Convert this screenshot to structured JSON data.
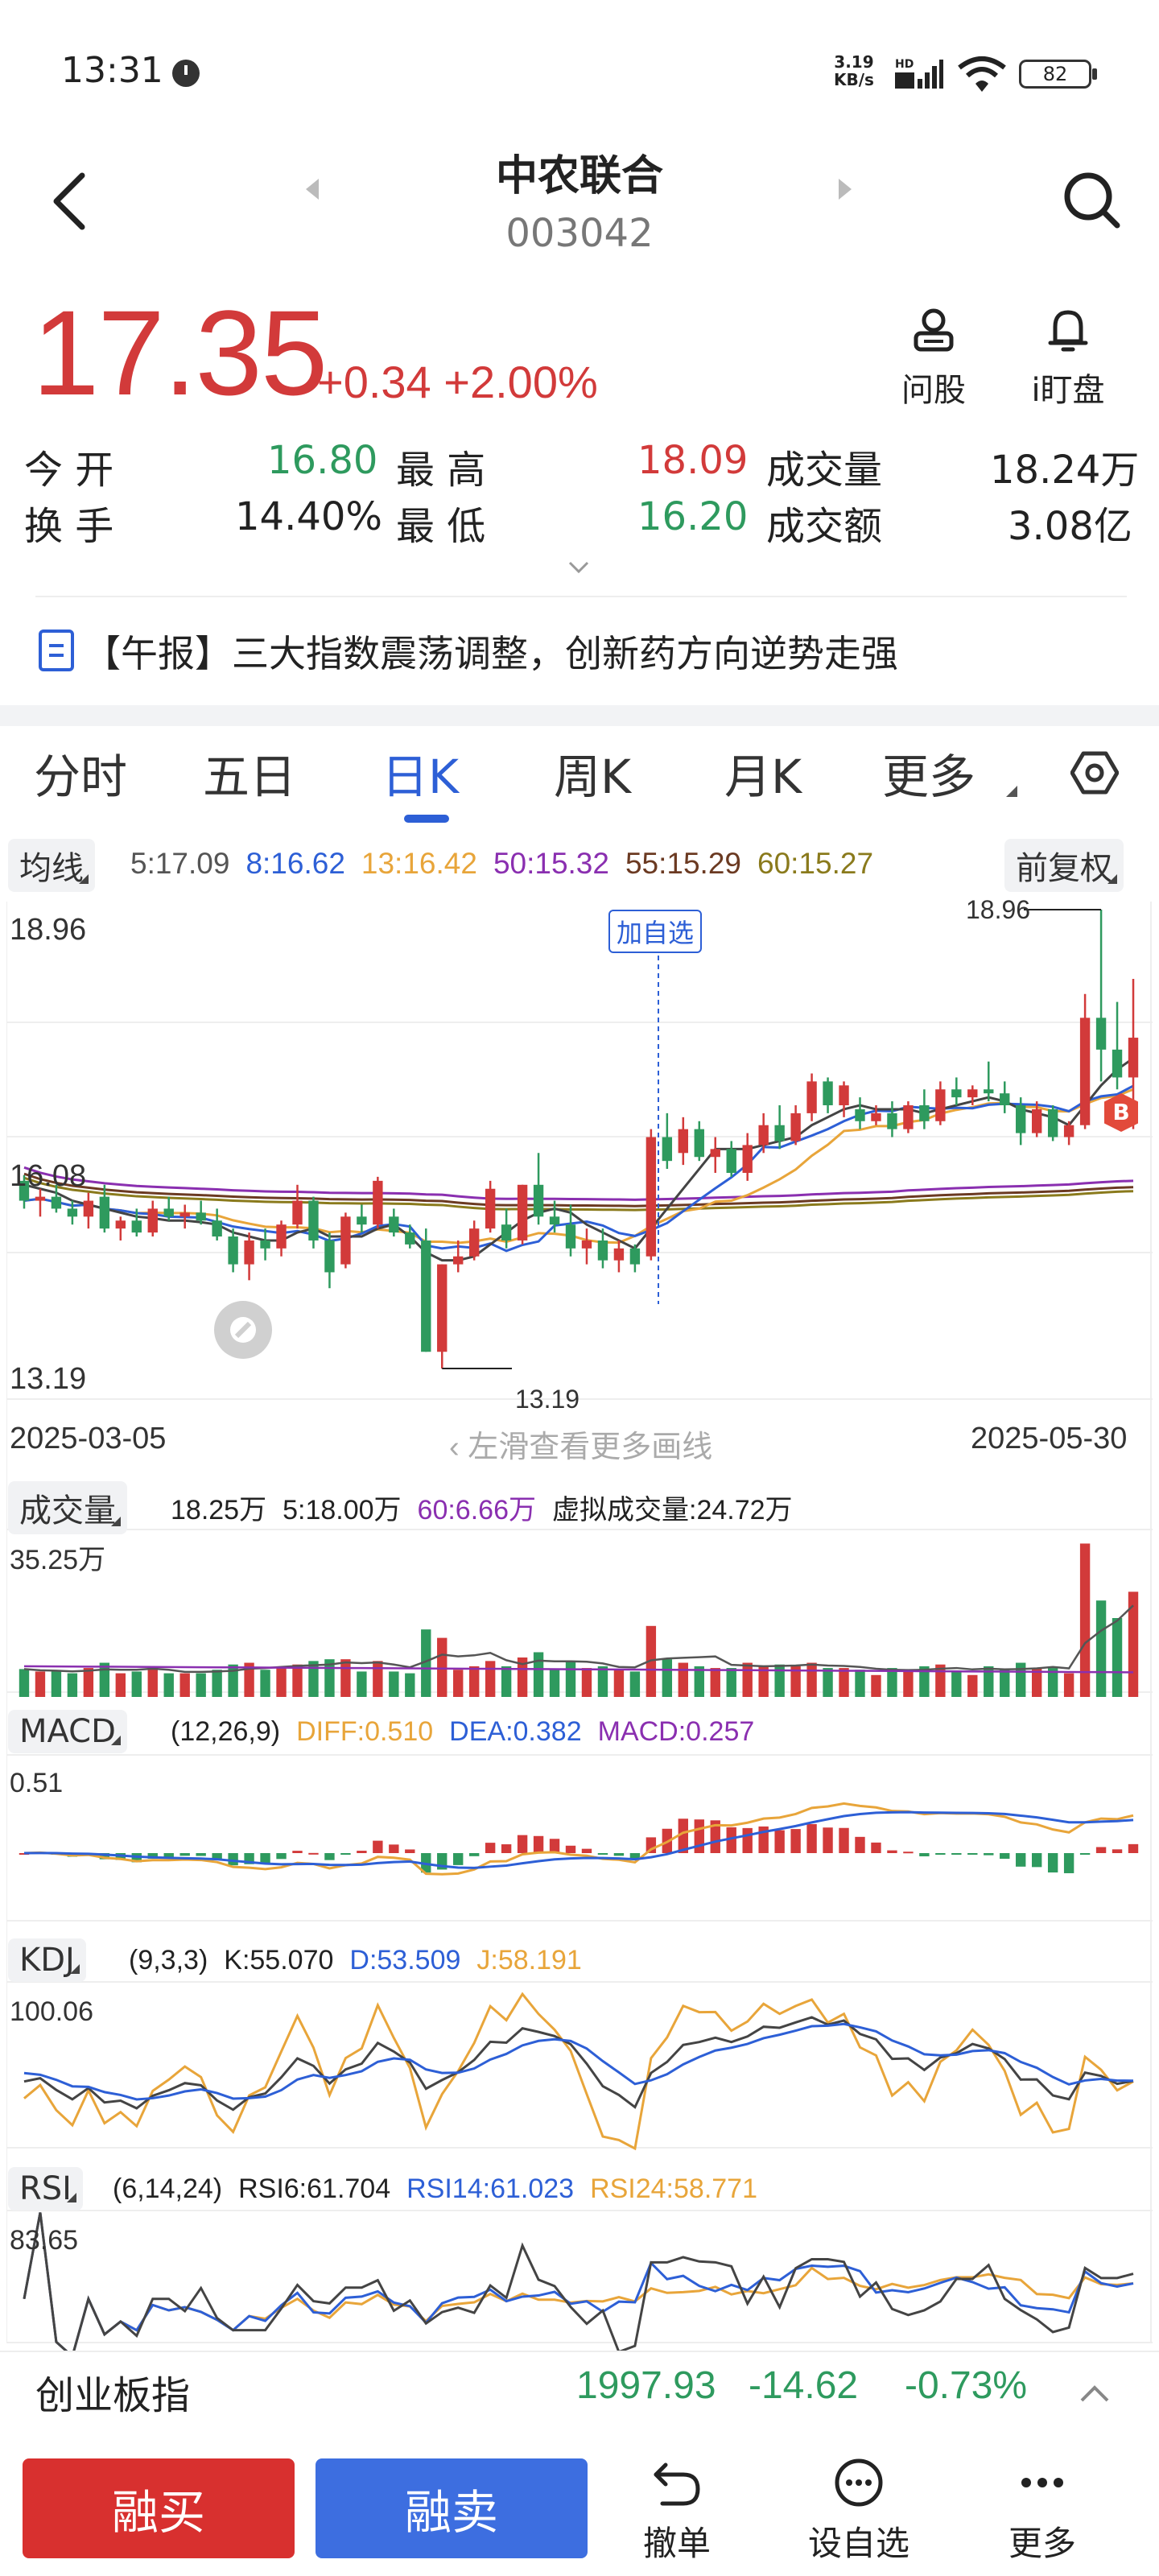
{
  "status_bar": {
    "time": "13:31",
    "net_speed_value": "3.19",
    "net_speed_unit": "KB/s",
    "net_type": "HD",
    "battery": "82"
  },
  "header": {
    "stock_name": "中农联合",
    "stock_code": "003042"
  },
  "quote": {
    "price": "17.35",
    "change": "+0.34",
    "change_pct": "+2.00%",
    "ask_label": "问股",
    "watch_label": "i盯盘"
  },
  "stats": {
    "open_label": "今  开",
    "open_value": "16.80",
    "high_label": "最  高",
    "high_value": "18.09",
    "volume_label": "成交量",
    "volume_value": "18.24万",
    "turnover_label": "换  手",
    "turnover_value": "14.40%",
    "low_label": "最  低",
    "low_value": "16.20",
    "amount_label": "成交额",
    "amount_value": "3.08亿"
  },
  "news": {
    "text": "【午报】三大指数震荡调整，创新药方向逆势走强"
  },
  "tabs": [
    "分时",
    "五日",
    "日K",
    "周K",
    "月K",
    "更多"
  ],
  "active_tab": 2,
  "ma_legend": {
    "selector": "均线",
    "ma5": "5:17.09",
    "ma8": "8:16.62",
    "ma13": "13:16.42",
    "ma50": "50:15.32",
    "ma55": "55:15.29",
    "ma60": "60:15.27",
    "adjust": "前复权"
  },
  "kline": {
    "high_label": "18.96",
    "mid_label": "16.08",
    "low_label": "13.19",
    "max_marker": "18.96",
    "min_marker": "13.19",
    "add_watch_tag": "加自选",
    "buy_tag": "B",
    "start_date": "2025-03-05",
    "end_date": "2025-05-30",
    "scroll_hint": "左滑查看更多画线"
  },
  "volume": {
    "selector": "成交量",
    "today": "18.25万",
    "ma5": "5:18.00万",
    "ma60": "60:6.66万",
    "virtual": "虚拟成交量:24.72万",
    "max_label": "35.25万"
  },
  "macd": {
    "selector": "MACD",
    "params": "(12,26,9)",
    "diff": "DIFF:0.510",
    "dea": "DEA:0.382",
    "macd": "MACD:0.257",
    "max_label": "0.51"
  },
  "kdj": {
    "selector": "KDJ",
    "params": "(9,3,3)",
    "k": "K:55.070",
    "d": "D:53.509",
    "j": "J:58.191",
    "max_label": "100.06"
  },
  "rsi": {
    "selector": "RSI",
    "params": "(6,14,24)",
    "rsi6": "RSI6:61.704",
    "rsi14": "RSI14:61.023",
    "rsi24": "RSI24:58.771",
    "max_label": "83.65"
  },
  "index_bar": {
    "name": "创业板指",
    "value": "1997.93",
    "change": "-14.62",
    "change_pct": "-0.73%"
  },
  "bottom_bar": {
    "buy": "融买",
    "sell": "融卖",
    "cancel": "撤单",
    "set_watch": "设自选",
    "more": "更多"
  },
  "colors": {
    "up": "#d23a3a",
    "down": "#2e9a5e",
    "accent": "#2d5fd6",
    "ma5": "#444444",
    "ma8": "#2d5fd6",
    "ma13": "#e8a53a",
    "ma50": "#8a2fb0",
    "ma55": "#6b3a22",
    "ma60": "#8a7a1c"
  },
  "chart_data": {
    "type": "candlestick",
    "x_start": "2025-03-05",
    "x_end": "2025-05-30",
    "y_range": [
      13.19,
      18.96
    ],
    "ohlc": [
      [
        15.55,
        15.62,
        15.2,
        15.3
      ],
      [
        15.3,
        15.45,
        15.1,
        15.35
      ],
      [
        15.35,
        15.5,
        15.15,
        15.2
      ],
      [
        15.2,
        15.3,
        15.0,
        15.1
      ],
      [
        15.1,
        15.4,
        14.95,
        15.3
      ],
      [
        15.35,
        15.5,
        14.9,
        14.95
      ],
      [
        14.95,
        15.1,
        14.8,
        15.05
      ],
      [
        15.05,
        15.2,
        14.85,
        14.9
      ],
      [
        14.9,
        15.3,
        14.85,
        15.2
      ],
      [
        15.2,
        15.35,
        15.05,
        15.1
      ],
      [
        15.1,
        15.25,
        14.95,
        15.15
      ],
      [
        15.15,
        15.3,
        15.0,
        15.05
      ],
      [
        15.05,
        15.2,
        14.8,
        14.85
      ],
      [
        14.85,
        14.95,
        14.4,
        14.5
      ],
      [
        14.5,
        14.9,
        14.3,
        14.8
      ],
      [
        14.8,
        14.95,
        14.55,
        14.7
      ],
      [
        14.7,
        15.05,
        14.6,
        15.0
      ],
      [
        15.0,
        15.5,
        14.95,
        15.3
      ],
      [
        15.3,
        15.35,
        14.7,
        14.8
      ],
      [
        14.8,
        14.9,
        14.2,
        14.4
      ],
      [
        14.5,
        15.15,
        14.45,
        15.1
      ],
      [
        15.1,
        15.25,
        14.9,
        15.0
      ],
      [
        15.0,
        15.6,
        14.95,
        15.55
      ],
      [
        15.1,
        15.2,
        14.85,
        14.9
      ],
      [
        14.9,
        15.0,
        14.7,
        14.75
      ],
      [
        14.8,
        14.95,
        13.4,
        13.4
      ],
      [
        13.4,
        14.5,
        13.19,
        14.5
      ],
      [
        14.5,
        14.8,
        14.4,
        14.6
      ],
      [
        14.6,
        15.05,
        14.55,
        14.95
      ],
      [
        14.95,
        15.55,
        14.9,
        15.45
      ],
      [
        15.0,
        15.2,
        14.7,
        14.8
      ],
      [
        14.8,
        15.5,
        14.75,
        15.5
      ],
      [
        15.5,
        15.9,
        15.0,
        15.1
      ],
      [
        15.1,
        15.3,
        14.9,
        15.0
      ],
      [
        15.0,
        15.25,
        14.6,
        14.7
      ],
      [
        14.7,
        14.95,
        14.5,
        14.8
      ],
      [
        14.8,
        14.95,
        14.45,
        14.55
      ],
      [
        14.55,
        14.8,
        14.4,
        14.7
      ],
      [
        14.7,
        14.75,
        14.4,
        14.5
      ],
      [
        14.6,
        16.2,
        14.55,
        16.1
      ],
      [
        16.1,
        16.4,
        15.7,
        15.8
      ],
      [
        15.9,
        16.35,
        15.75,
        16.2
      ],
      [
        16.2,
        16.3,
        15.8,
        15.85
      ],
      [
        15.85,
        16.1,
        15.65,
        15.95
      ],
      [
        15.95,
        16.05,
        15.6,
        15.65
      ],
      [
        15.65,
        16.15,
        15.55,
        16.0
      ],
      [
        16.0,
        16.4,
        15.9,
        16.25
      ],
      [
        16.25,
        16.5,
        15.95,
        16.05
      ],
      [
        16.05,
        16.5,
        16.0,
        16.4
      ],
      [
        16.4,
        16.9,
        16.3,
        16.8
      ],
      [
        16.8,
        16.85,
        16.4,
        16.5
      ],
      [
        16.5,
        16.8,
        16.35,
        16.75
      ],
      [
        16.45,
        16.6,
        16.2,
        16.3
      ],
      [
        16.3,
        16.5,
        16.25,
        16.4
      ],
      [
        16.4,
        16.55,
        16.1,
        16.2
      ],
      [
        16.2,
        16.55,
        16.15,
        16.5
      ],
      [
        16.5,
        16.7,
        16.2,
        16.3
      ],
      [
        16.3,
        16.8,
        16.25,
        16.7
      ],
      [
        16.7,
        16.85,
        16.5,
        16.6
      ],
      [
        16.6,
        16.75,
        16.5,
        16.7
      ],
      [
        16.7,
        17.05,
        16.55,
        16.65
      ],
      [
        16.65,
        16.8,
        16.4,
        16.5
      ],
      [
        16.5,
        16.6,
        16.0,
        16.15
      ],
      [
        16.15,
        16.55,
        16.1,
        16.45
      ],
      [
        16.45,
        16.5,
        16.05,
        16.1
      ],
      [
        16.1,
        16.3,
        16.0,
        16.25
      ],
      [
        16.25,
        17.9,
        16.2,
        17.6
      ],
      [
        17.6,
        18.96,
        16.8,
        17.2
      ],
      [
        17.2,
        17.8,
        16.7,
        16.85
      ],
      [
        16.85,
        18.09,
        16.2,
        17.35
      ]
    ],
    "ma5": [
      15.5,
      15.45,
      15.4,
      15.3,
      15.25,
      15.2,
      15.15,
      15.1,
      15.08,
      15.05,
      15.05,
      15.03,
      15.0,
      14.9,
      14.85,
      14.8,
      14.8,
      14.9,
      14.95,
      14.85,
      14.85,
      14.85,
      14.95,
      15.0,
      14.85,
      14.65,
      14.55,
      14.55,
      14.6,
      14.75,
      14.9,
      15.05,
      15.15,
      15.2,
      15.15,
      15.0,
      14.9,
      14.8,
      14.7,
      14.95,
      15.2,
      15.45,
      15.7,
      15.95,
      15.95,
      15.95,
      16.0,
      16.05,
      16.1,
      16.25,
      16.35,
      16.45,
      16.5,
      16.45,
      16.45,
      16.45,
      16.4,
      16.45,
      16.5,
      16.55,
      16.6,
      16.55,
      16.45,
      16.4,
      16.35,
      16.25,
      16.5,
      16.75,
      16.95,
      17.09
    ]
  }
}
